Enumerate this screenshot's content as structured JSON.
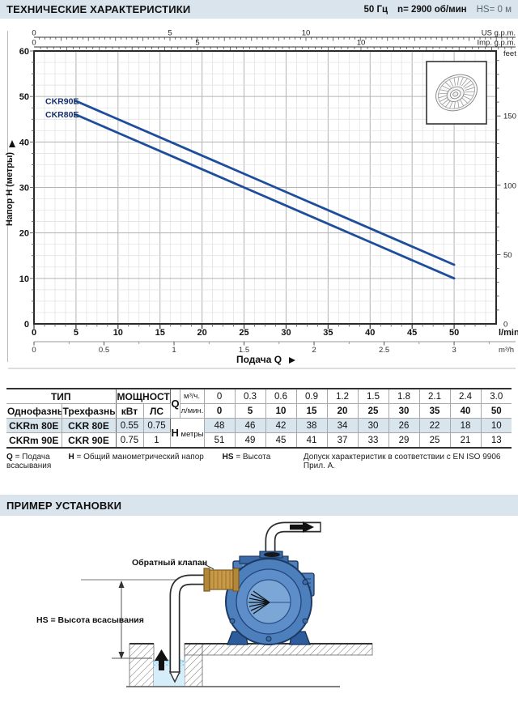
{
  "header": {
    "title": "ТЕХНИЧЕСКИЕ ХАРАКТЕРИСТИКИ",
    "freq": "50 Гц",
    "speed": "n= 2900 об/мин",
    "suction": "HS= 0 м"
  },
  "chart_data": {
    "type": "line",
    "x_axis": {
      "label": "Подача Q",
      "unit_primary": "l/min",
      "ticks_lmin": [
        0,
        5,
        10,
        15,
        20,
        25,
        30,
        35,
        40,
        45,
        50
      ],
      "unit_secondary": "m³/h",
      "ticks_m3h": [
        "0",
        "0.5",
        "1",
        "1.5",
        "2",
        "2.5",
        "3"
      ],
      "range_lmin": [
        0,
        55
      ]
    },
    "top_axes": [
      {
        "label": "US g.p.m.",
        "ticks": [
          0,
          5,
          10
        ]
      },
      {
        "label": "Imp. g.p.m.",
        "ticks": [
          0,
          5,
          10
        ]
      }
    ],
    "y_axis": {
      "label": "Напор H (метры)",
      "ticks": [
        0,
        10,
        20,
        30,
        40,
        50,
        60
      ],
      "range": [
        0,
        60
      ]
    },
    "right_axis": {
      "label": "feet",
      "ticks": [
        "0",
        "50",
        "100",
        "150"
      ]
    },
    "grid": true,
    "series": [
      {
        "name": "CKR90E",
        "color": "#1e4e9b",
        "x": [
          5,
          10,
          15,
          20,
          25,
          30,
          35,
          40,
          50
        ],
        "y": [
          49,
          45,
          41,
          37,
          33,
          29,
          25,
          21,
          13
        ]
      },
      {
        "name": "CKR80E",
        "color": "#1e4e9b",
        "x": [
          5,
          10,
          15,
          20,
          25,
          30,
          35,
          40,
          50
        ],
        "y": [
          46,
          42,
          38,
          34,
          30,
          26,
          22,
          18,
          10
        ]
      }
    ]
  },
  "table": {
    "headers": {
      "tip": "ТИП",
      "power": "МОЩНОСТЬ",
      "single": "Однофазный",
      "three": "Трехфазный",
      "kw": "кВт",
      "hp": "ЛС",
      "q": "Q",
      "m3h": "м³/ч.",
      "lmin": "л/мин.",
      "h": "H",
      "meters": "метры"
    },
    "q_m3h": [
      "0",
      "0.3",
      "0.6",
      "0.9",
      "1.2",
      "1.5",
      "1.8",
      "2.1",
      "2.4",
      "3.0"
    ],
    "q_lmin": [
      "0",
      "5",
      "10",
      "15",
      "20",
      "25",
      "30",
      "35",
      "40",
      "50"
    ],
    "rows": [
      {
        "single": "CKRm 80E",
        "three": "CKR 80E",
        "kw": "0.55",
        "hp": "0.75",
        "h": [
          "48",
          "46",
          "42",
          "38",
          "34",
          "30",
          "26",
          "22",
          "18",
          "10"
        ]
      },
      {
        "single": "CKRm 90E",
        "three": "CKR 90E",
        "kw": "0.75",
        "hp": "1",
        "h": [
          "51",
          "49",
          "45",
          "41",
          "37",
          "33",
          "29",
          "25",
          "21",
          "13"
        ]
      }
    ]
  },
  "legend": {
    "q_key": "Q",
    "q_text": "= Подача",
    "h_key": "H",
    "h_text": "= Общий манометрический напор",
    "hs_key": "HS",
    "hs_text": "= Высота всасывания",
    "note": "Допуск характеристик в соответствии с EN ISO 9906 Прил. А."
  },
  "section2": {
    "title": "ПРИМЕР УСТАНОВКИ"
  },
  "diagram": {
    "check_valve_label": "Обратный клапан",
    "hs_label": "HS = Высота всасывания"
  }
}
